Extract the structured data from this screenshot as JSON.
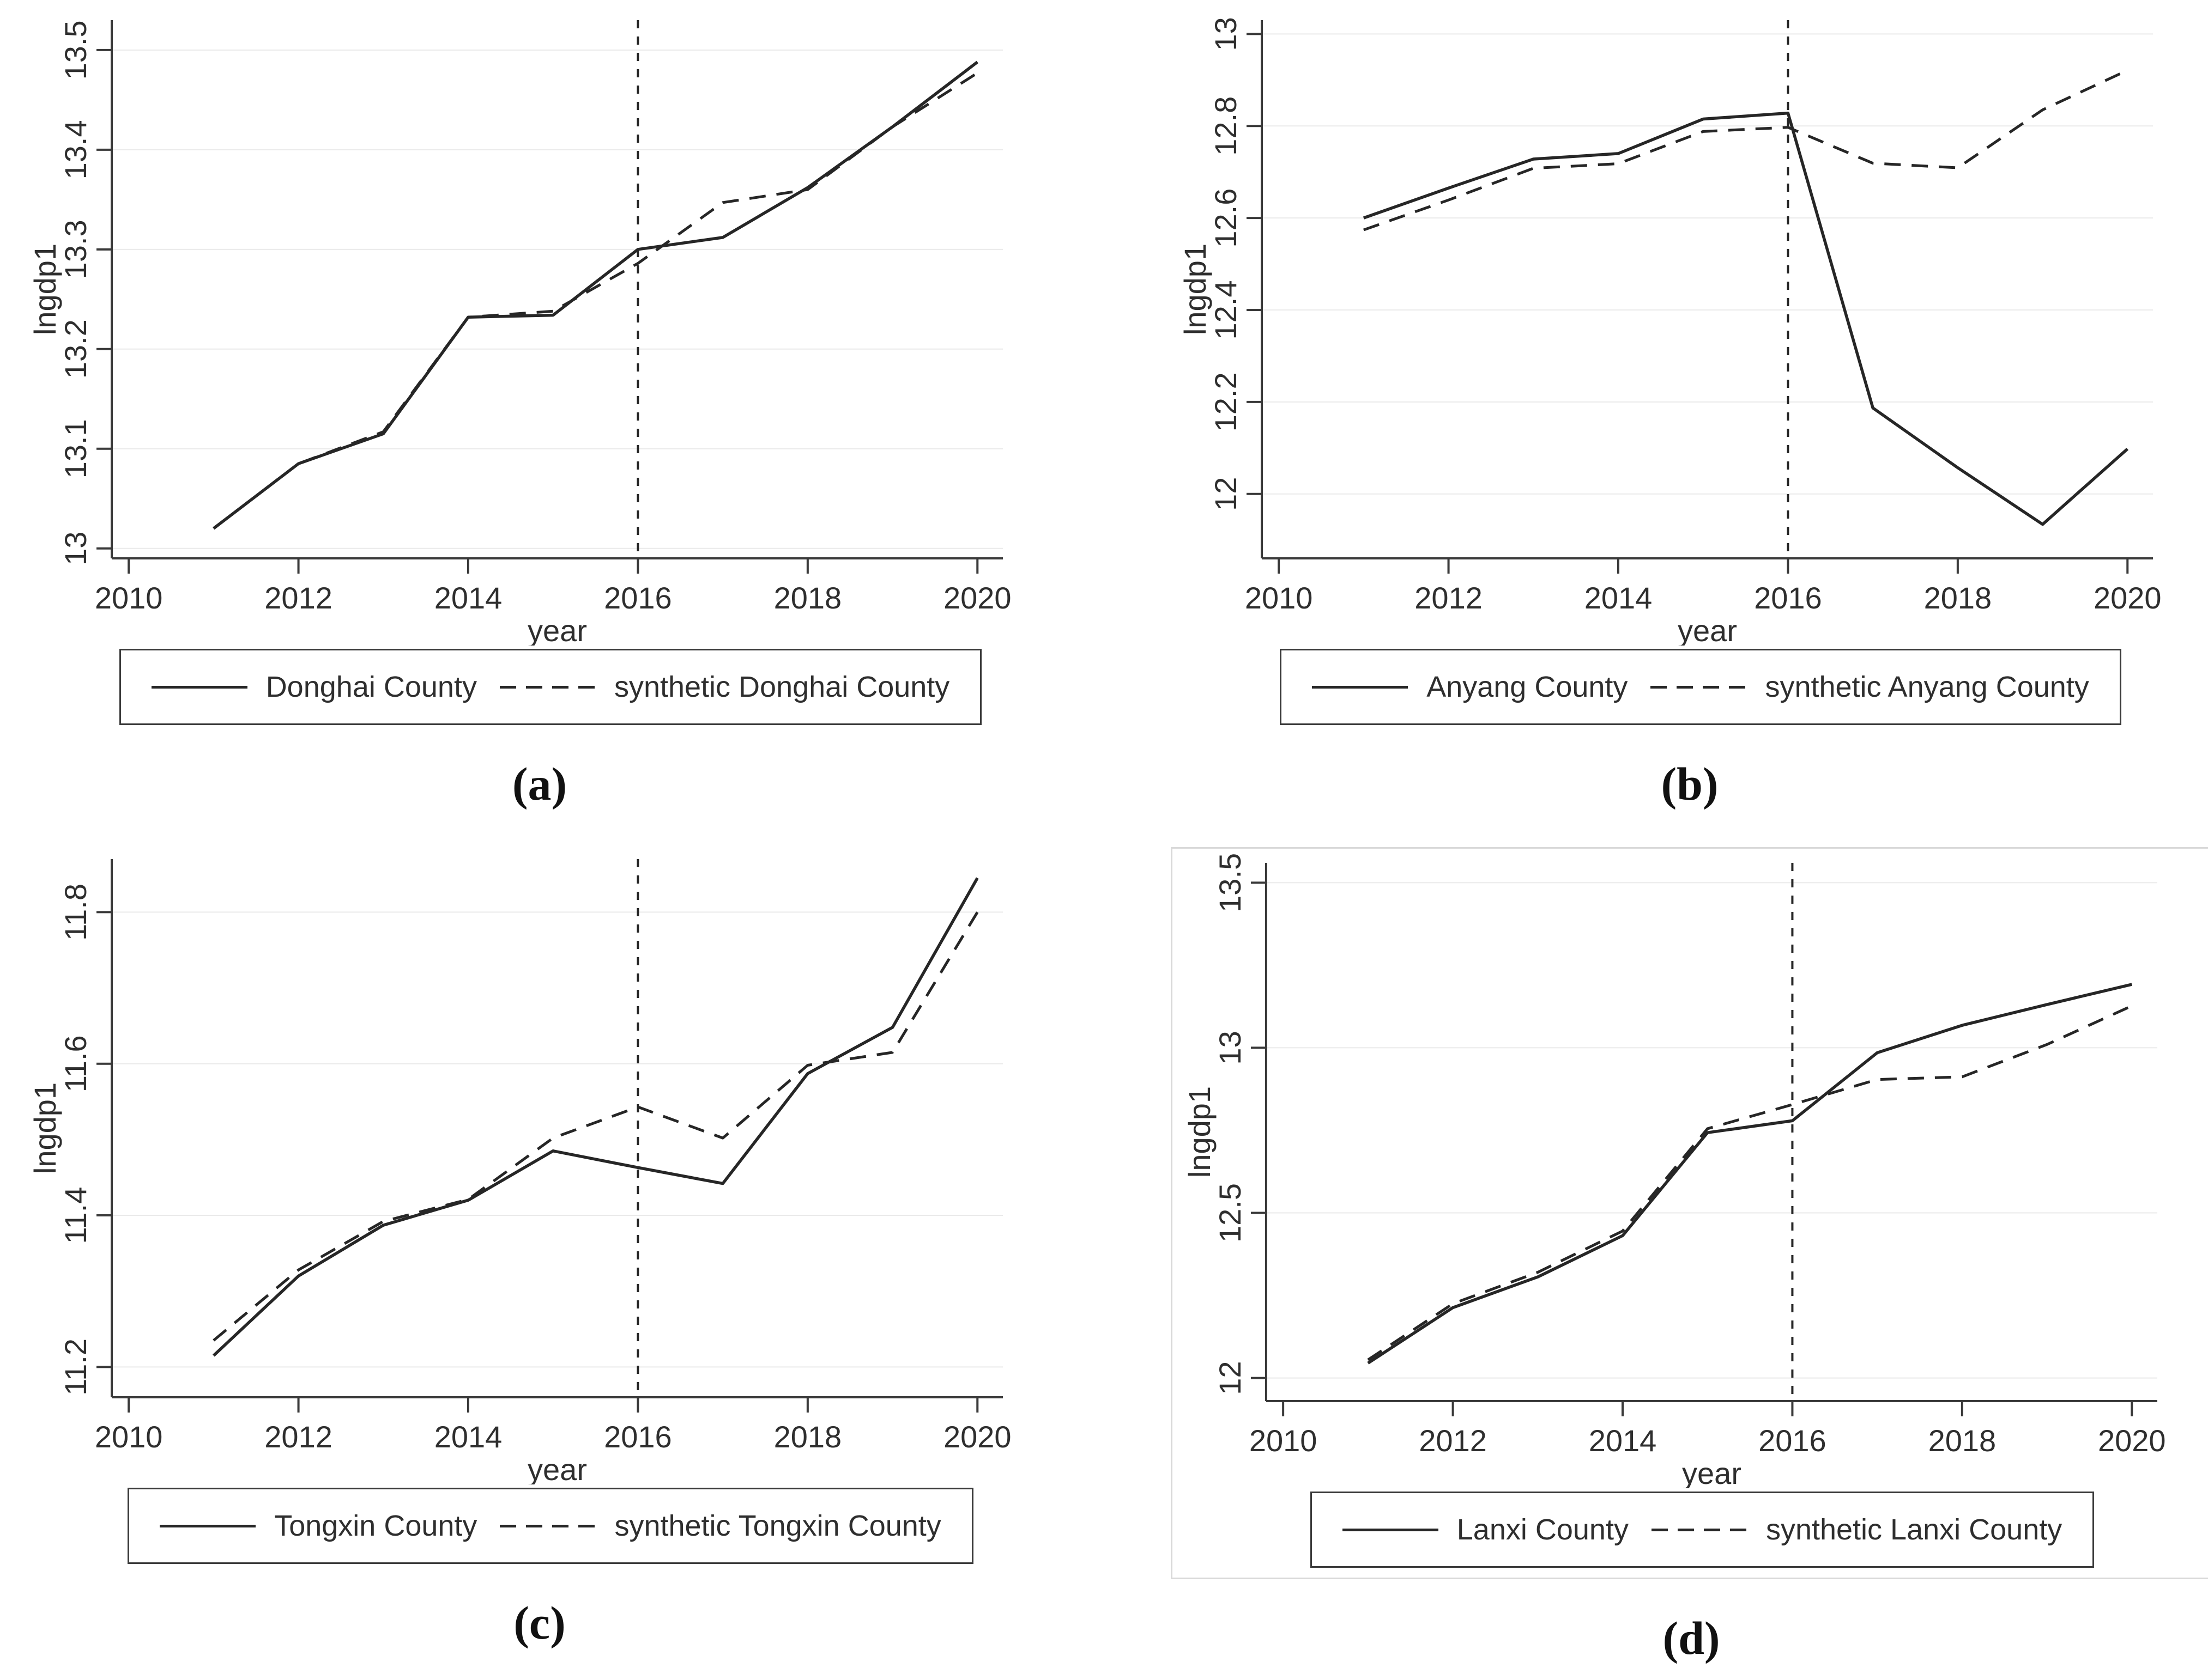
{
  "styles": {
    "line_color": "#262626",
    "grid_color": "#eaeaea",
    "axis_color": "#3a3a3a",
    "tick_text_color": "#2e2e2e",
    "panel_frame_color": "#d9d9d9",
    "background": "#ffffff"
  },
  "chart_data": [
    {
      "type": "line",
      "panel_label": "(a)",
      "xlabel": "year",
      "ylabel": "lngdp1",
      "x": [
        2011,
        2012,
        2013,
        2014,
        2015,
        2016,
        2017,
        2018,
        2019,
        2020
      ],
      "xticks": [
        2010,
        2012,
        2014,
        2016,
        2018,
        2020
      ],
      "xlim": [
        2009.8,
        2020.3
      ],
      "ylim": [
        12.99,
        13.53
      ],
      "yticks": [
        13,
        13.1,
        13.2,
        13.3,
        13.4,
        13.5
      ],
      "ytick_labels": [
        "13",
        "13.1",
        "13.2",
        "13.3",
        "13.4",
        "13.5"
      ],
      "vline_x": 2016,
      "grid": "horizontal",
      "legend_position": "bottom",
      "series": [
        {
          "name": "Donghai County",
          "style": "solid",
          "values": [
            13.02,
            13.085,
            13.115,
            13.232,
            13.234,
            13.3,
            13.312,
            13.362,
            13.423,
            13.488
          ]
        },
        {
          "name": "synthetic Donghai County",
          "style": "dashed",
          "values": [
            13.02,
            13.085,
            13.117,
            13.232,
            13.238,
            13.286,
            13.347,
            13.36,
            13.423,
            13.477
          ]
        }
      ]
    },
    {
      "type": "line",
      "panel_label": "(b)",
      "xlabel": "year",
      "ylabel": "lngdp1",
      "x": [
        2011,
        2012,
        2013,
        2014,
        2015,
        2016,
        2017,
        2018,
        2019,
        2020
      ],
      "xticks": [
        2010,
        2012,
        2014,
        2016,
        2018,
        2020
      ],
      "xlim": [
        2009.8,
        2020.3
      ],
      "ylim": [
        11.86,
        13.03
      ],
      "yticks": [
        12,
        12.2,
        12.4,
        12.6,
        12.8,
        13
      ],
      "ytick_labels": [
        "12",
        "12.2",
        "12.4",
        "12.6",
        "12.8",
        "13"
      ],
      "vline_x": 2016,
      "grid": "horizontal",
      "legend_position": "bottom",
      "series": [
        {
          "name": "Anyang County",
          "style": "solid",
          "values": [
            12.6,
            12.665,
            12.728,
            12.74,
            12.815,
            12.828,
            12.187,
            12.057,
            11.934,
            12.098
          ]
        },
        {
          "name": "synthetic Anyang County",
          "style": "dashed",
          "values": [
            12.574,
            12.639,
            12.708,
            12.718,
            12.788,
            12.797,
            12.719,
            12.709,
            12.835,
            12.921
          ]
        }
      ]
    },
    {
      "type": "line",
      "panel_label": "(c)",
      "xlabel": "year",
      "ylabel": "lngdp1",
      "x": [
        2011,
        2012,
        2013,
        2014,
        2015,
        2016,
        2017,
        2018,
        2019,
        2020
      ],
      "xticks": [
        2010,
        2012,
        2014,
        2016,
        2018,
        2020
      ],
      "xlim": [
        2009.8,
        2020.3
      ],
      "ylim": [
        11.16,
        11.87
      ],
      "yticks": [
        11.2,
        11.4,
        11.6,
        11.8
      ],
      "ytick_labels": [
        "11.2",
        "11.4",
        "11.6",
        "11.8"
      ],
      "vline_x": 2016,
      "grid": "horizontal",
      "legend_position": "bottom",
      "series": [
        {
          "name": "Tongxin County",
          "style": "solid",
          "values": [
            11.215,
            11.32,
            11.387,
            11.42,
            11.485,
            11.463,
            11.442,
            11.587,
            11.648,
            11.845
          ]
        },
        {
          "name": "synthetic Tongxin County",
          "style": "dashed",
          "values": [
            11.235,
            11.328,
            11.392,
            11.421,
            11.502,
            11.543,
            11.502,
            11.598,
            11.615,
            11.8
          ]
        }
      ]
    },
    {
      "type": "line",
      "panel_label": "(d)",
      "xlabel": "year",
      "ylabel": "lngdp1",
      "x": [
        2011,
        2012,
        2013,
        2014,
        2015,
        2016,
        2017,
        2018,
        2019,
        2020
      ],
      "xticks": [
        2010,
        2012,
        2014,
        2016,
        2018,
        2020
      ],
      "xlim": [
        2009.8,
        2020.3
      ],
      "ylim": [
        11.93,
        13.56
      ],
      "yticks": [
        12,
        12.5,
        13,
        13.5
      ],
      "ytick_labels": [
        "12",
        "12.5",
        "13",
        "13.5"
      ],
      "vline_x": 2016,
      "grid": "horizontal",
      "legend_position": "bottom",
      "series": [
        {
          "name": "Lanxi County",
          "style": "solid",
          "values": [
            12.045,
            12.213,
            12.306,
            12.431,
            12.743,
            12.779,
            12.985,
            13.068,
            13.131,
            13.192
          ]
        },
        {
          "name": "synthetic Lanxi County",
          "style": "dashed",
          "values": [
            12.055,
            12.225,
            12.32,
            12.445,
            12.755,
            12.828,
            12.904,
            12.912,
            13.01,
            13.127
          ]
        }
      ]
    }
  ]
}
